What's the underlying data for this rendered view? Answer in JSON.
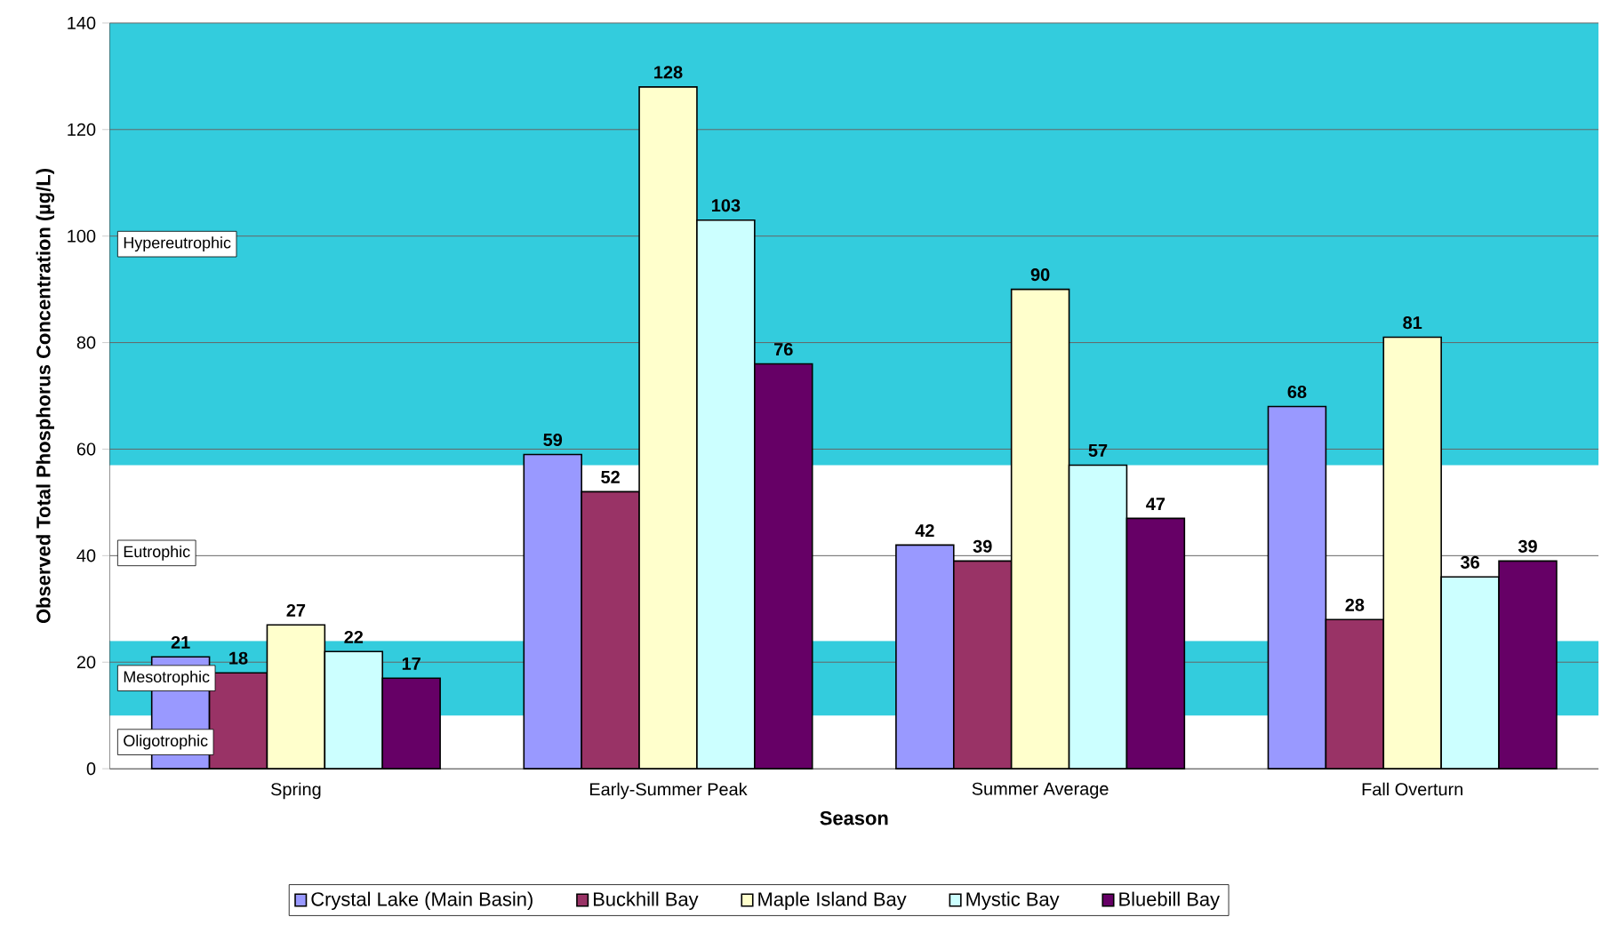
{
  "chart_data": {
    "type": "bar",
    "categories": [
      "Spring",
      "Early-Summer Peak",
      "Summer Average",
      "Fall Overturn"
    ],
    "xlabel": "Season",
    "ylabel": "Observed Total Phosphorus Concentration (µg/L)",
    "series": [
      {
        "name": "Crystal Lake (Main Basin)",
        "color": "#9999ff",
        "values": [
          21,
          59,
          42,
          68
        ]
      },
      {
        "name": "Buckhill Bay",
        "color": "#993366",
        "values": [
          18,
          52,
          39,
          28
        ]
      },
      {
        "name": "Maple Island Bay",
        "color": "#ffffcc",
        "values": [
          27,
          128,
          90,
          81
        ]
      },
      {
        "name": "Mystic Bay",
        "color": "#ccffff",
        "values": [
          22,
          103,
          57,
          36
        ]
      },
      {
        "name": "Bluebill Bay",
        "color": "#660066",
        "values": [
          17,
          76,
          47,
          39
        ]
      }
    ],
    "ylim": [
      0,
      140
    ],
    "yticks": [
      0,
      20,
      40,
      60,
      80,
      100,
      120,
      140
    ],
    "bands": [
      {
        "axis": "y",
        "from": 0,
        "to": 10,
        "label": "Oligotrophic",
        "color": "#ffffff"
      },
      {
        "axis": "y",
        "from": 10,
        "to": 24,
        "label": "Mesotrophic",
        "color": "#33ccdd"
      },
      {
        "axis": "y",
        "from": 24,
        "to": 57,
        "label": "Eutrophic",
        "color": "#ffffff"
      },
      {
        "axis": "y",
        "from": 57,
        "to": 140,
        "label": "Hypereutrophic",
        "color": "#33ccdd"
      }
    ],
    "data_labels": true,
    "grid": "y",
    "legend": "bottom"
  }
}
